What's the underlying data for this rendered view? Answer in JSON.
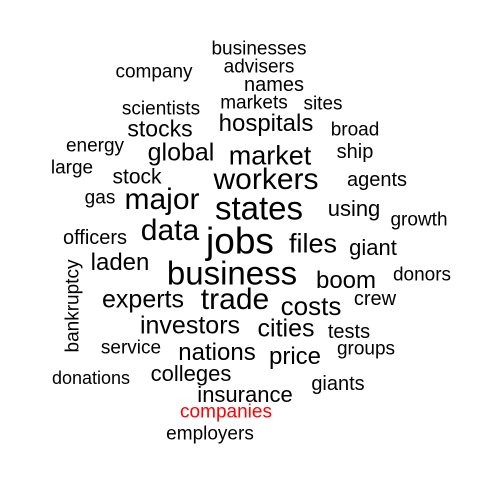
{
  "words": [
    {
      "text": "businesses",
      "color": "#000000"
    },
    {
      "text": "company",
      "color": "#000000"
    },
    {
      "text": "advisers",
      "color": "#000000"
    },
    {
      "text": "names",
      "color": "#000000"
    },
    {
      "text": "scientists",
      "color": "#000000"
    },
    {
      "text": "markets",
      "color": "#000000"
    },
    {
      "text": "sites",
      "color": "#000000"
    },
    {
      "text": "stocks",
      "color": "#000000"
    },
    {
      "text": "hospitals",
      "color": "#000000"
    },
    {
      "text": "broad",
      "color": "#000000"
    },
    {
      "text": "energy",
      "color": "#000000"
    },
    {
      "text": "global",
      "color": "#000000"
    },
    {
      "text": "market",
      "color": "#000000"
    },
    {
      "text": "ship",
      "color": "#000000"
    },
    {
      "text": "large",
      "color": "#000000"
    },
    {
      "text": "stock",
      "color": "#000000"
    },
    {
      "text": "workers",
      "color": "#000000"
    },
    {
      "text": "agents",
      "color": "#000000"
    },
    {
      "text": "gas",
      "color": "#000000"
    },
    {
      "text": "major",
      "color": "#000000"
    },
    {
      "text": "states",
      "color": "#000000"
    },
    {
      "text": "using",
      "color": "#000000"
    },
    {
      "text": "growth",
      "color": "#000000"
    },
    {
      "text": "data",
      "color": "#000000"
    },
    {
      "text": "officers",
      "color": "#000000"
    },
    {
      "text": "jobs",
      "color": "#000000"
    },
    {
      "text": "files",
      "color": "#000000"
    },
    {
      "text": "giant",
      "color": "#000000"
    },
    {
      "text": "laden",
      "color": "#000000"
    },
    {
      "text": "business",
      "color": "#000000"
    },
    {
      "text": "boom",
      "color": "#000000"
    },
    {
      "text": "donors",
      "color": "#000000"
    },
    {
      "text": "bankruptcy",
      "color": "#000000"
    },
    {
      "text": "experts",
      "color": "#000000"
    },
    {
      "text": "trade",
      "color": "#000000"
    },
    {
      "text": "costs",
      "color": "#000000"
    },
    {
      "text": "crew",
      "color": "#000000"
    },
    {
      "text": "investors",
      "color": "#000000"
    },
    {
      "text": "cities",
      "color": "#000000"
    },
    {
      "text": "tests",
      "color": "#000000"
    },
    {
      "text": "service",
      "color": "#000000"
    },
    {
      "text": "nations",
      "color": "#000000"
    },
    {
      "text": "price",
      "color": "#000000"
    },
    {
      "text": "groups",
      "color": "#000000"
    },
    {
      "text": "donations",
      "color": "#000000"
    },
    {
      "text": "colleges",
      "color": "#000000"
    },
    {
      "text": "giants",
      "color": "#000000"
    },
    {
      "text": "insurance",
      "color": "#000000"
    },
    {
      "text": "companies",
      "color": "#ff0000"
    },
    {
      "text": "employers",
      "color": "#000000"
    }
  ]
}
